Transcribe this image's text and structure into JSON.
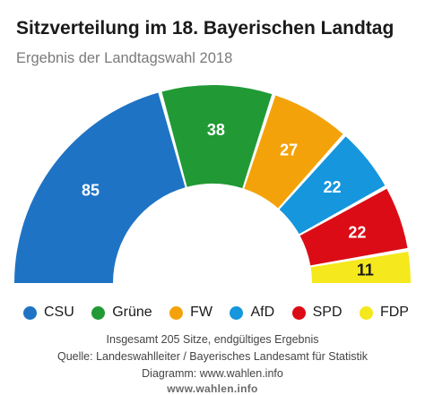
{
  "header": {
    "title": "Sitzverteilung im 18. Bayerischen Landtag",
    "subtitle": "Ergebnis der Landtagswahl 2018"
  },
  "chart_data": {
    "type": "pie",
    "subtype": "semicircle-parliament",
    "title": "Sitzverteilung im 18. Bayerischen Landtag",
    "subtitle": "Ergebnis der Landtagswahl 2018",
    "total": 205,
    "categories": [
      "CSU",
      "Grüne",
      "FW",
      "AfD",
      "SPD",
      "FDP"
    ],
    "values": [
      85,
      38,
      27,
      22,
      22,
      11
    ],
    "colors": [
      "#1f73c4",
      "#219a36",
      "#f4a20a",
      "#1596dd",
      "#db0c16",
      "#f5e81c"
    ],
    "legend_position": "bottom"
  },
  "legend": [
    {
      "label": "CSU",
      "color": "#1f73c4"
    },
    {
      "label": "Grüne",
      "color": "#219a36"
    },
    {
      "label": "FW",
      "color": "#f4a20a"
    },
    {
      "label": "AfD",
      "color": "#1596dd"
    },
    {
      "label": "SPD",
      "color": "#db0c16"
    },
    {
      "label": "FDP",
      "color": "#f5e81c"
    }
  ],
  "footer": {
    "line1": "Insgesamt 205 Sitze, endgültiges Ergebnis",
    "line2": "Quelle: Landeswahlleiter / Bayerisches Landesamt für Statistik",
    "line3": "Diagramm: www.wahlen.info",
    "url": "www.wahlen.info"
  }
}
